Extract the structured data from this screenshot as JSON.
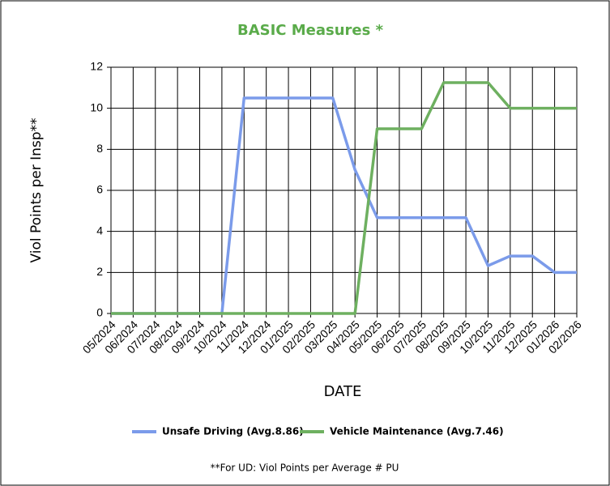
{
  "chart_data": {
    "type": "line",
    "title": "BASIC Measures *",
    "y_label": "Viol Points per Insp**",
    "x_label": "DATE",
    "footnote": "**For UD: Viol Points per Average # PU",
    "categories": [
      "05/2024",
      "06/2024",
      "07/2024",
      "08/2024",
      "09/2024",
      "10/2024",
      "11/2024",
      "12/2024",
      "01/2025",
      "02/2025",
      "03/2025",
      "04/2025",
      "05/2025",
      "06/2025",
      "07/2025",
      "08/2025",
      "09/2025",
      "10/2025",
      "11/2025",
      "12/2025",
      "01/2026",
      "02/2026"
    ],
    "series": [
      {
        "name": "Unsafe Driving (Avg.8.86)",
        "color": "#7b9bea",
        "values": [
          0,
          0,
          0,
          0,
          0,
          0,
          10.5,
          10.5,
          10.5,
          10.5,
          10.5,
          7,
          4.67,
          4.67,
          4.67,
          4.67,
          4.67,
          2.33,
          2.8,
          2.8,
          2,
          2
        ]
      },
      {
        "name": "Vehicle Maintenance (Avg.7.46)",
        "color": "#6eb060",
        "values": [
          0,
          0,
          0,
          0,
          0,
          0,
          0,
          0,
          0,
          0,
          0,
          0,
          9,
          9,
          9,
          11.25,
          11.25,
          11.25,
          10,
          10,
          10,
          10
        ]
      }
    ],
    "ylim": [
      0,
      12
    ],
    "yticks": [
      0,
      2,
      4,
      6,
      8,
      10,
      12
    ],
    "grid": true
  }
}
